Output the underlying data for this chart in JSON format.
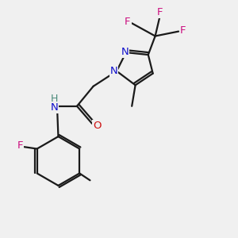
{
  "background_color": "#f0f0f0",
  "bond_color": "#1a1a1a",
  "N_color": "#1010cc",
  "O_color": "#cc1010",
  "F_color": "#cc1080",
  "H_color": "#4a8a7a",
  "figsize": [
    3.0,
    3.0
  ],
  "dpi": 100,
  "xlim": [
    0,
    10
  ],
  "ylim": [
    0,
    10
  ],
  "bond_lw": 1.6,
  "font_size": 9.5
}
